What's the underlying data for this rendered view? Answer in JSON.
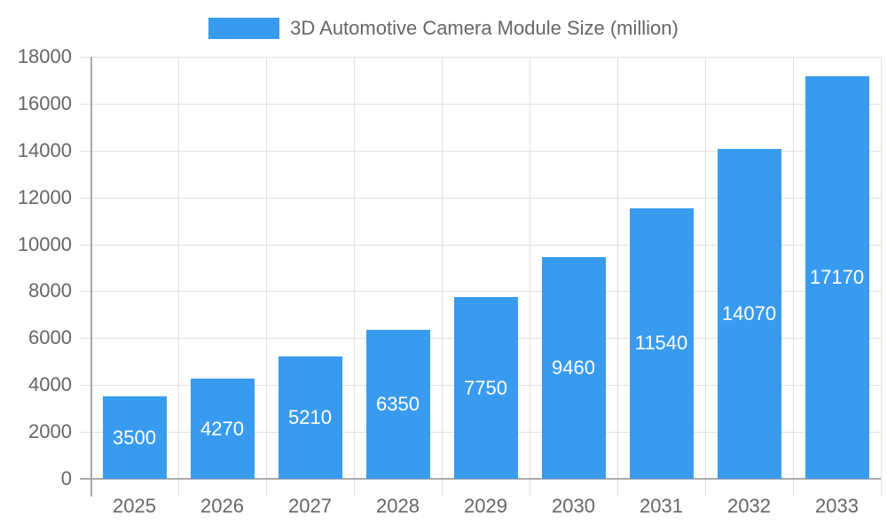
{
  "chart_data": {
    "type": "bar",
    "title": "",
    "legend": [
      {
        "label": "3D Automotive Camera Module Size (million)",
        "color": "#399bf0"
      }
    ],
    "legend_position": "top",
    "categories": [
      "2025",
      "2026",
      "2027",
      "2028",
      "2029",
      "2030",
      "2031",
      "2032",
      "2033"
    ],
    "series": [
      {
        "name": "3D Automotive Camera Module Size (million)",
        "values": [
          3500,
          4270,
          5210,
          6350,
          7750,
          9460,
          11540,
          14070,
          17170
        ]
      }
    ],
    "xlabel": "",
    "ylabel": "",
    "ylim": [
      0,
      18000
    ],
    "yticks": [
      "0",
      "2000",
      "4000",
      "6000",
      "8000",
      "10000",
      "12000",
      "14000",
      "16000",
      "18000"
    ],
    "grid": true,
    "data_labels": true
  }
}
